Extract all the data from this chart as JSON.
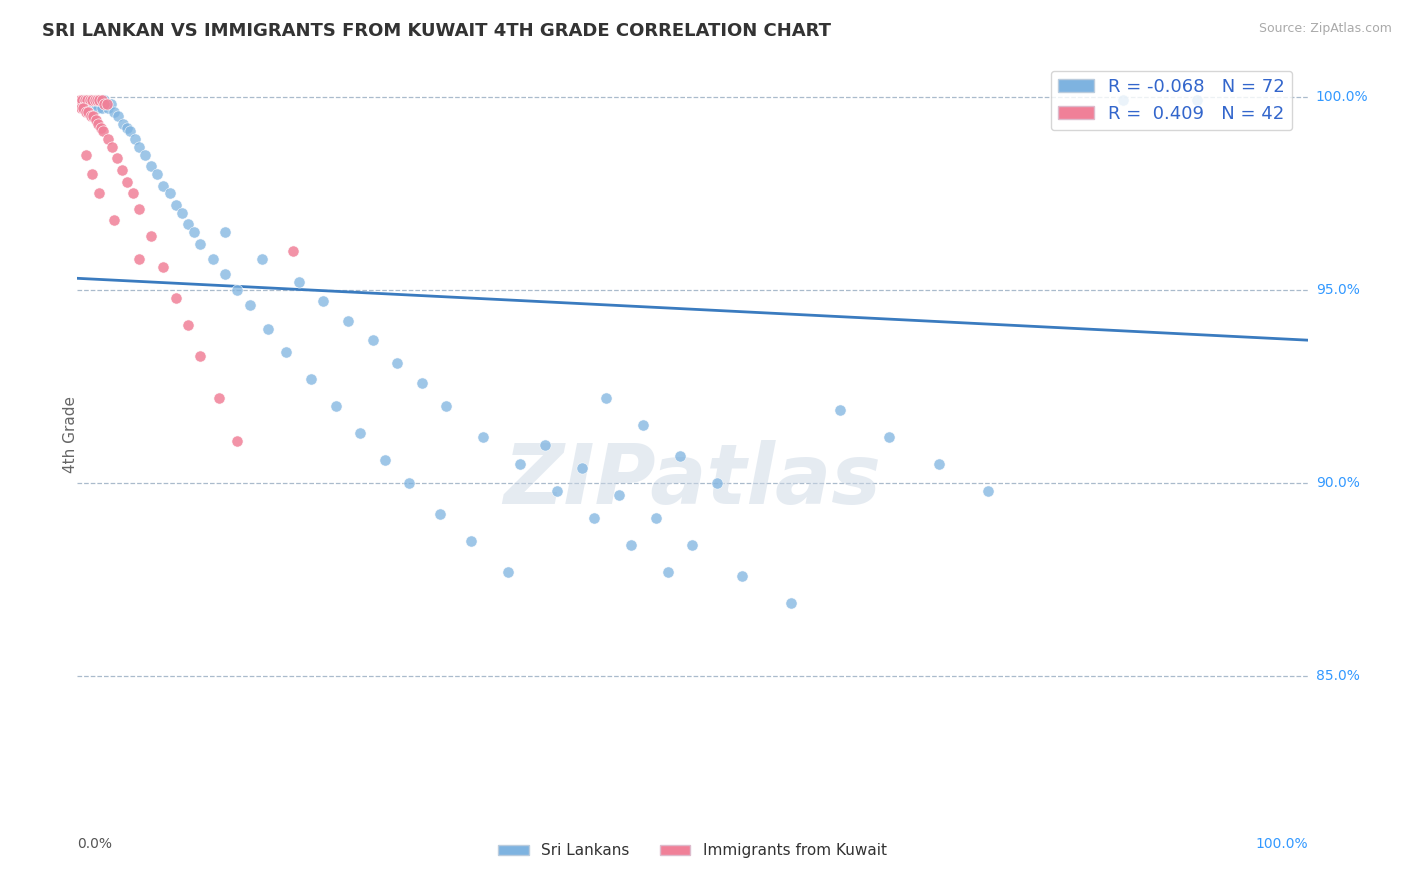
{
  "title": "SRI LANKAN VS IMMIGRANTS FROM KUWAIT 4TH GRADE CORRELATION CHART",
  "source_text": "Source: ZipAtlas.com",
  "ylabel": "4th Grade",
  "legend_blue_r": "-0.068",
  "legend_blue_n": "72",
  "legend_pink_r": "0.409",
  "legend_pink_n": "42",
  "legend_label_blue": "Sri Lankans",
  "legend_label_pink": "Immigrants from Kuwait",
  "watermark": "ZIPatlas",
  "blue_color": "#7eb3e0",
  "pink_color": "#f08098",
  "trendline_color": "#3a7bbf",
  "background_color": "#ffffff",
  "grid_color": "#aabbcc",
  "xmin": 0.0,
  "xmax": 1.0,
  "ymin": 0.815,
  "ymax": 1.01,
  "ytick_positions": [
    0.85,
    0.9,
    0.95,
    1.0
  ],
  "ytick_labels": [
    "85.0%",
    "90.0%",
    "95.0%",
    "100.0%"
  ],
  "blue_x": [
    0.005,
    0.01,
    0.013,
    0.015,
    0.017,
    0.02,
    0.022,
    0.025,
    0.027,
    0.03,
    0.033,
    0.037,
    0.04,
    0.043,
    0.047,
    0.05,
    0.055,
    0.06,
    0.065,
    0.07,
    0.075,
    0.08,
    0.085,
    0.09,
    0.095,
    0.1,
    0.11,
    0.12,
    0.13,
    0.14,
    0.155,
    0.17,
    0.19,
    0.21,
    0.23,
    0.25,
    0.27,
    0.295,
    0.32,
    0.35,
    0.12,
    0.15,
    0.18,
    0.2,
    0.22,
    0.24,
    0.26,
    0.28,
    0.3,
    0.33,
    0.36,
    0.39,
    0.42,
    0.45,
    0.48,
    0.38,
    0.41,
    0.44,
    0.47,
    0.5,
    0.54,
    0.58,
    0.43,
    0.46,
    0.49,
    0.52,
    0.62,
    0.66,
    0.7,
    0.74,
    0.85,
    0.91
  ],
  "blue_y": [
    0.999,
    0.999,
    0.998,
    0.998,
    0.997,
    0.997,
    0.999,
    0.997,
    0.998,
    0.996,
    0.995,
    0.993,
    0.992,
    0.991,
    0.989,
    0.987,
    0.985,
    0.982,
    0.98,
    0.977,
    0.975,
    0.972,
    0.97,
    0.967,
    0.965,
    0.962,
    0.958,
    0.954,
    0.95,
    0.946,
    0.94,
    0.934,
    0.927,
    0.92,
    0.913,
    0.906,
    0.9,
    0.892,
    0.885,
    0.877,
    0.965,
    0.958,
    0.952,
    0.947,
    0.942,
    0.937,
    0.931,
    0.926,
    0.92,
    0.912,
    0.905,
    0.898,
    0.891,
    0.884,
    0.877,
    0.91,
    0.904,
    0.897,
    0.891,
    0.884,
    0.876,
    0.869,
    0.922,
    0.915,
    0.907,
    0.9,
    0.919,
    0.912,
    0.905,
    0.898,
    0.999,
    0.999
  ],
  "pink_x": [
    0.002,
    0.004,
    0.006,
    0.008,
    0.01,
    0.012,
    0.014,
    0.016,
    0.018,
    0.02,
    0.022,
    0.024,
    0.003,
    0.005,
    0.007,
    0.009,
    0.011,
    0.013,
    0.015,
    0.017,
    0.019,
    0.021,
    0.025,
    0.028,
    0.032,
    0.036,
    0.04,
    0.045,
    0.05,
    0.06,
    0.07,
    0.08,
    0.09,
    0.1,
    0.115,
    0.13,
    0.007,
    0.012,
    0.018,
    0.03,
    0.05,
    0.175
  ],
  "pink_y": [
    0.999,
    0.999,
    0.999,
    0.999,
    0.999,
    0.999,
    0.999,
    0.999,
    0.999,
    0.999,
    0.998,
    0.998,
    0.997,
    0.997,
    0.996,
    0.996,
    0.995,
    0.995,
    0.994,
    0.993,
    0.992,
    0.991,
    0.989,
    0.987,
    0.984,
    0.981,
    0.978,
    0.975,
    0.971,
    0.964,
    0.956,
    0.948,
    0.941,
    0.933,
    0.922,
    0.911,
    0.985,
    0.98,
    0.975,
    0.968,
    0.958,
    0.96
  ],
  "trendline_x_start": 0.0,
  "trendline_x_end": 1.0,
  "trendline_y_start": 0.953,
  "trendline_y_end": 0.937
}
